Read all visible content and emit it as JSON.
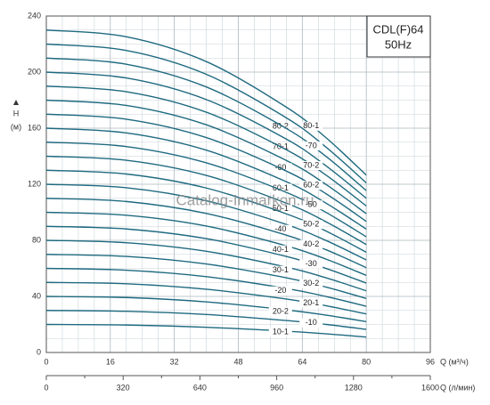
{
  "chart_data": {
    "type": "line",
    "title": "CDL(F)64",
    "subtitle": "50Hz",
    "y_label": "H",
    "y_unit": "(м)",
    "x_label": "Q (м³/ч)",
    "x2_label": "Q (л/мин)",
    "watermark": "Catalog-Inmarkon.ru",
    "x": [
      0,
      20,
      40,
      60,
      70,
      80
    ],
    "xlim": [
      0,
      96
    ],
    "xticks": [
      0,
      16,
      32,
      48,
      64,
      80,
      96
    ],
    "x2lim": [
      0,
      1600
    ],
    "x2ticks": [
      0,
      320,
      640,
      960,
      1280,
      1600
    ],
    "ylim": [
      0,
      240
    ],
    "yticks": [
      0,
      40,
      80,
      120,
      160,
      200,
      240
    ],
    "grid": true,
    "color": "#1f6a80",
    "series": [
      {
        "name": "80-1",
        "values": [
          230,
          225.2,
          207.5,
          175.0,
          153.0,
          126.5
        ]
      },
      {
        "name": "80-2",
        "values": [
          220,
          215.4,
          198.4,
          167.4,
          146.3,
          121
        ]
      },
      {
        "name": "-70",
        "values": [
          210,
          205.6,
          189.4,
          159.8,
          139.7,
          115.5
        ]
      },
      {
        "name": "70-1",
        "values": [
          200,
          195.8,
          180.4,
          152.2,
          133,
          110
        ]
      },
      {
        "name": "70-2",
        "values": [
          190,
          186.0,
          171.4,
          144.6,
          126.4,
          104.5
        ]
      },
      {
        "name": "-60",
        "values": [
          180,
          176.2,
          162.4,
          137.0,
          119.7,
          99
        ]
      },
      {
        "name": "60-2",
        "values": [
          170,
          166.4,
          153.3,
          129.4,
          113.1,
          93.5
        ]
      },
      {
        "name": "60-1",
        "values": [
          160,
          156.6,
          144.3,
          121.8,
          106.4,
          88
        ]
      },
      {
        "name": "-50",
        "values": [
          150,
          146.9,
          135.3,
          114.2,
          99.8,
          82.5
        ]
      },
      {
        "name": "50-1",
        "values": [
          140,
          137.1,
          126.3,
          106.5,
          93.1,
          77
        ]
      },
      {
        "name": "50-2",
        "values": [
          130,
          127.3,
          117.3,
          98.9,
          86.5,
          71.5
        ]
      },
      {
        "name": "-40",
        "values": [
          120,
          117.5,
          108.2,
          91.3,
          79.8,
          66
        ]
      },
      {
        "name": "40-2",
        "values": [
          110,
          107.7,
          99.2,
          83.7,
          73.2,
          60.5
        ]
      },
      {
        "name": "40-1",
        "values": [
          100,
          97.9,
          90.2,
          76.1,
          66.5,
          55
        ]
      },
      {
        "name": "-30",
        "values": [
          90,
          88.1,
          81.2,
          68.5,
          59.9,
          49.5
        ]
      },
      {
        "name": "30-1",
        "values": [
          80,
          78.3,
          72.2,
          60.9,
          53.2,
          44
        ]
      },
      {
        "name": "30-2",
        "values": [
          70,
          68.5,
          63.1,
          53.3,
          46.6,
          38.5
        ]
      },
      {
        "name": "-20",
        "values": [
          60,
          58.7,
          54.1,
          45.7,
          39.9,
          33
        ]
      },
      {
        "name": "20-1",
        "values": [
          50,
          49,
          45.1,
          38.1,
          33.3,
          27.5
        ]
      },
      {
        "name": "20-2",
        "values": [
          40,
          39.2,
          36.1,
          30.4,
          26.6,
          22
        ]
      },
      {
        "name": "-10",
        "values": [
          30,
          29.4,
          27.1,
          22.8,
          20,
          16.5
        ]
      },
      {
        "name": "10-1",
        "values": [
          20,
          19.6,
          18,
          15.2,
          13.3,
          11
        ]
      }
    ]
  }
}
